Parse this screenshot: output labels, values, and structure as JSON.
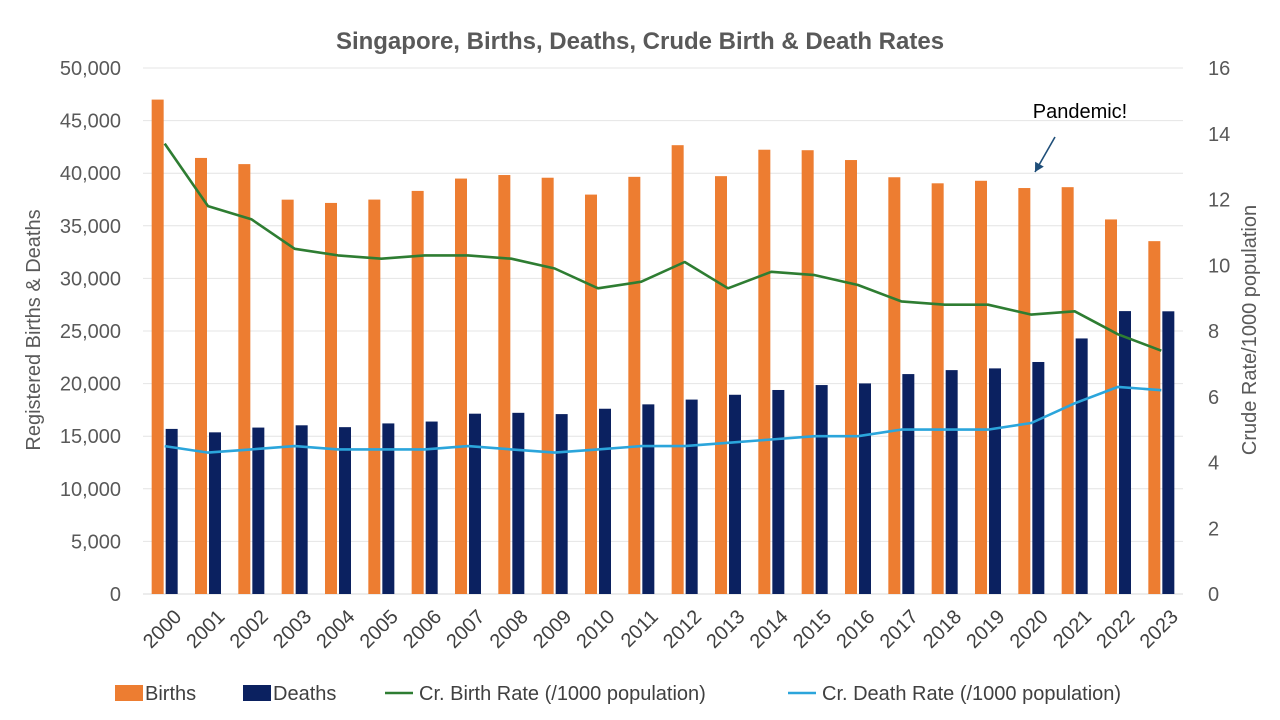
{
  "chart_data": {
    "type": "bar",
    "title": "Singapore, Births, Deaths, Crude Birth & Death Rates",
    "categories": [
      "2000",
      "2001",
      "2002",
      "2003",
      "2004",
      "2005",
      "2006",
      "2007",
      "2008",
      "2009",
      "2010",
      "2011",
      "2012",
      "2013",
      "2014",
      "2015",
      "2016",
      "2017",
      "2018",
      "2019",
      "2020",
      "2021",
      "2022",
      "2023"
    ],
    "ylabel": "Registered Births & Deaths",
    "y2label": "Crude Rate/1000 population",
    "ylim": [
      0,
      50000
    ],
    "y2lim": [
      0,
      16
    ],
    "y_ticks": [
      "0",
      "5,000",
      "10,000",
      "15,000",
      "20,000",
      "25,000",
      "30,000",
      "35,000",
      "40,000",
      "45,000",
      "50,000"
    ],
    "y2_ticks": [
      "0",
      "2",
      "4",
      "6",
      "8",
      "10",
      "12",
      "14",
      "16"
    ],
    "grid": true,
    "legend_position": "bottom",
    "bar_series": [
      {
        "name": "Births",
        "color": "#ED7D31",
        "values": [
          46997,
          41451,
          40864,
          37485,
          37174,
          37492,
          38317,
          39490,
          39826,
          39570,
          37967,
          39654,
          42663,
          39720,
          42232,
          42185,
          41251,
          39615,
          39039,
          39279,
          38590,
          38672,
          35605,
          33541
        ]
      },
      {
        "name": "Deaths",
        "color": "#0B2160",
        "values": [
          15693,
          15367,
          15820,
          16036,
          15860,
          16215,
          16393,
          17140,
          17222,
          17101,
          17610,
          18027,
          18481,
          18938,
          19393,
          19862,
          20017,
          20905,
          21282,
          21446,
          22054,
          24292,
          26891,
          26872
        ]
      }
    ],
    "line_series": [
      {
        "name": "Cr. Birth Rate (/1000 population)",
        "color": "#2E7D32",
        "values": [
          13.7,
          11.8,
          11.4,
          10.5,
          10.3,
          10.2,
          10.3,
          10.3,
          10.2,
          9.9,
          9.3,
          9.5,
          10.1,
          9.3,
          9.8,
          9.7,
          9.4,
          8.9,
          8.8,
          8.8,
          8.5,
          8.6,
          7.9,
          7.4
        ]
      },
      {
        "name": "Cr. Death Rate (/1000 population)",
        "color": "#2BA5DB",
        "values": [
          4.5,
          4.3,
          4.4,
          4.5,
          4.4,
          4.4,
          4.4,
          4.5,
          4.4,
          4.3,
          4.4,
          4.5,
          4.5,
          4.6,
          4.7,
          4.8,
          4.8,
          5.0,
          5.0,
          5.0,
          5.2,
          5.8,
          6.3,
          6.2
        ]
      }
    ],
    "annotations": [
      {
        "text": "Pandemic!",
        "target_category": "2020"
      }
    ]
  }
}
